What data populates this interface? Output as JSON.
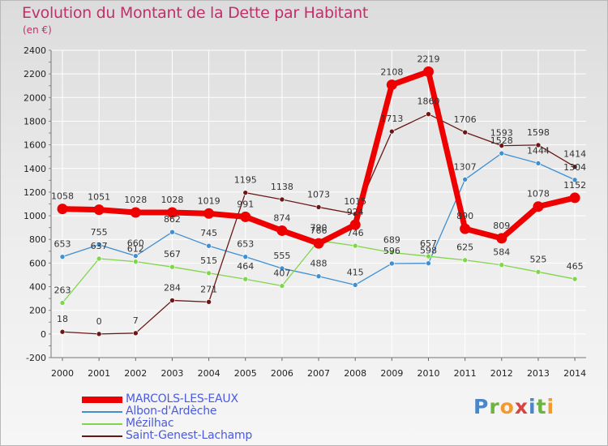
{
  "title": "Evolution du Montant de la Dette par Habitant",
  "unit": "(en €)",
  "logo": "Proxiti",
  "chart_data": {
    "type": "line",
    "x": [
      "2000",
      "2001",
      "2002",
      "2003",
      "2004",
      "2005",
      "2006",
      "2007",
      "2008",
      "2009",
      "2010",
      "2011",
      "2012",
      "2013",
      "2014"
    ],
    "ylim": [
      -200,
      2400
    ],
    "yticks": [
      "-200",
      "0",
      "200",
      "400",
      "600",
      "800",
      "1000",
      "1200",
      "1400",
      "1600",
      "1800",
      "2000",
      "2200",
      "2400"
    ],
    "grid": true,
    "legend_position": "bottom-left",
    "series": [
      {
        "name": "MARCOLS-LES-EAUX",
        "color": "#ee0000",
        "values": [
          1058,
          1051,
          1028,
          1028,
          1019,
          991,
          874,
          766,
          924,
          2108,
          2219,
          890,
          809,
          1078,
          1152
        ],
        "labels": [
          "1058",
          "1051",
          "1028",
          "1028",
          "1019",
          "991",
          "874",
          "766",
          "924",
          "2108",
          "2219",
          "890",
          "809",
          "1078",
          "1152"
        ]
      },
      {
        "name": "Albon-d'Ardèche",
        "color": "#3f8fd2",
        "values": [
          653,
          755,
          660,
          862,
          745,
          653,
          555,
          488,
          415,
          596,
          598,
          1307,
          1528,
          1444,
          1304
        ],
        "labels": [
          "653",
          "755",
          "660",
          "862",
          "745",
          "653",
          "555",
          "488",
          "415",
          "596",
          "598",
          "1307",
          "1528",
          "1444",
          "1304"
        ]
      },
      {
        "name": "Mézilhac",
        "color": "#7fd64a",
        "values": [
          263,
          637,
          612,
          567,
          515,
          464,
          407,
          790,
          746,
          689,
          657,
          625,
          584,
          525,
          465
        ],
        "labels": [
          "263",
          "637",
          "612",
          "567",
          "515",
          "464",
          "407",
          "790",
          "746",
          "689",
          "657",
          "625",
          "584",
          "525",
          "465"
        ]
      },
      {
        "name": "Saint-Genest-Lachamp",
        "color": "#6b1717",
        "values": [
          18,
          0,
          7,
          284,
          271,
          1195,
          1138,
          1073,
          1015,
          1713,
          1860,
          1706,
          1593,
          1598,
          1414
        ],
        "labels": [
          "18",
          "0",
          "7",
          "284",
          "271",
          "1195",
          "1138",
          "1073",
          "1015",
          "1713",
          "1860",
          "1706",
          "1593",
          "1598",
          "1414"
        ]
      }
    ]
  }
}
